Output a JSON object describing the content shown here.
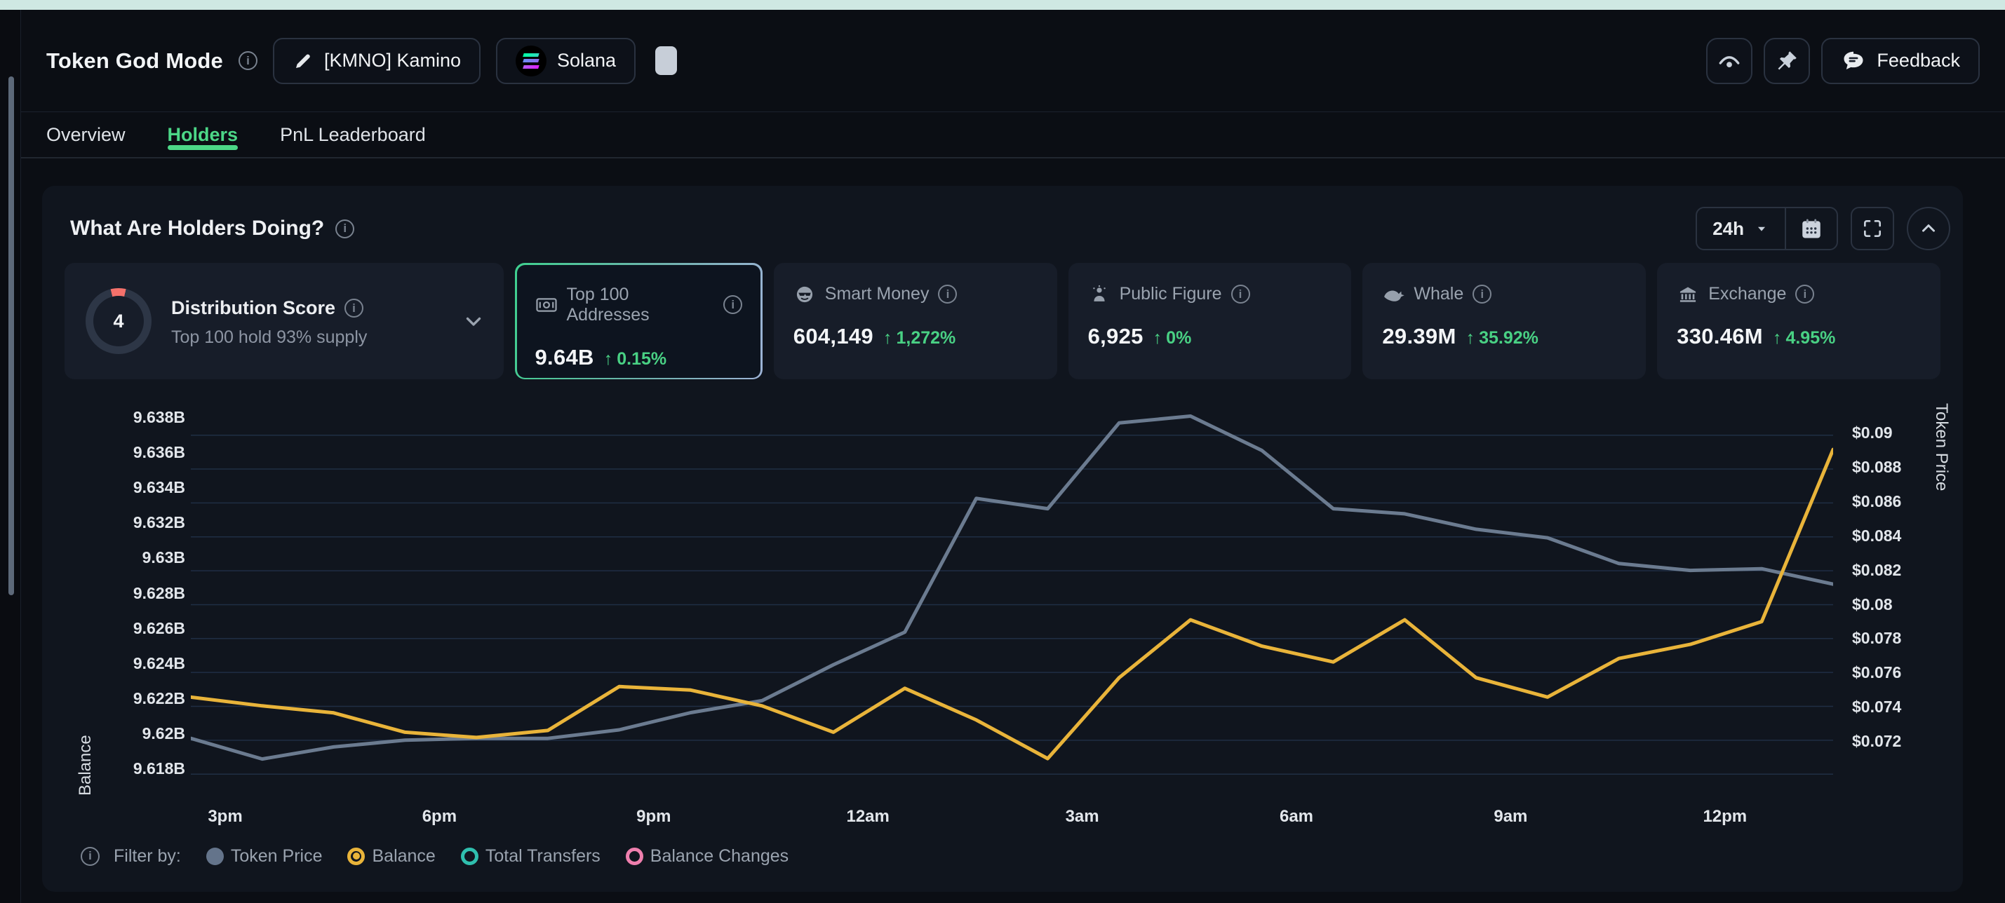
{
  "header": {
    "title": "Token God Mode",
    "token_button": {
      "label": "[KMNO] Kamino",
      "icon": "pencil-icon"
    },
    "chain_button": {
      "label": "Solana",
      "icon": "solana-logo"
    },
    "copy_icon": "copy-icon",
    "watch_icon": "eye-icon",
    "pin_icon": "pin-icon",
    "feedback_button": {
      "label": "Feedback",
      "icon": "chat-bubble-icon"
    }
  },
  "tabs": [
    {
      "label": "Overview",
      "active": false
    },
    {
      "label": "Holders",
      "active": true
    },
    {
      "label": "PnL Leaderboard",
      "active": false
    }
  ],
  "panel": {
    "title": "What Are Holders Doing?",
    "timeframe": "24h",
    "controls": [
      "timeframe-dropdown",
      "calendar-icon",
      "fullscreen-icon",
      "collapse-chevron-icon"
    ],
    "tiles": [
      {
        "name": "Distribution Score",
        "score": "4",
        "subtitle": "Top 100 hold 93% supply",
        "ring_color": "#f4716b"
      },
      {
        "name": "Top 100 Addresses",
        "icon": "banknote-icon",
        "value": "9.64B",
        "delta": "0.15%",
        "selected": true
      },
      {
        "name": "Smart Money",
        "icon": "sunglasses-face-icon",
        "value": "604,149",
        "delta": "1,272%"
      },
      {
        "name": "Public Figure",
        "icon": "public-figure-icon",
        "value": "6,925",
        "delta": "0%"
      },
      {
        "name": "Whale",
        "icon": "whale-icon",
        "value": "29.39M",
        "delta": "35.92%"
      },
      {
        "name": "Exchange",
        "icon": "bank-icon",
        "value": "330.46M",
        "delta": "4.95%"
      }
    ],
    "delta_color": "#49d184",
    "accent_green": "#4cd787",
    "legend": {
      "prefix": "Filter by:",
      "items": [
        {
          "label": "Token Price",
          "marker": "filled",
          "color": "#64748b"
        },
        {
          "label": "Balance",
          "marker": "radio-selected",
          "color": "#e9b43a"
        },
        {
          "label": "Total Transfers",
          "marker": "ring",
          "color": "#2fbfae"
        },
        {
          "label": "Balance Changes",
          "marker": "ring",
          "color": "#ef7fae"
        }
      ]
    }
  },
  "chart_data": {
    "type": "line",
    "x": [
      "2:30pm",
      "3:30pm",
      "4:30pm",
      "5:30pm",
      "6:30pm",
      "7:30pm",
      "8:30pm",
      "9:30pm",
      "10:30pm",
      "11:30pm",
      "12:30am",
      "1:30am",
      "2:30am",
      "3:30am",
      "4:30am",
      "5:30am",
      "6:30am",
      "7:30am",
      "8:30am",
      "9:30am",
      "10:30am",
      "11:30am",
      "12:30pm",
      "1:30pm"
    ],
    "x_axis": {
      "labels": [
        "3pm",
        "6pm",
        "9pm",
        "12am",
        "3am",
        "6am",
        "9am",
        "12pm"
      ]
    },
    "left_axis": {
      "label": "Balance",
      "ticks": [
        "9.638B",
        "9.636B",
        "9.634B",
        "9.632B",
        "9.63B",
        "9.628B",
        "9.626B",
        "9.624B",
        "9.622B",
        "9.62B",
        "9.618B"
      ],
      "top_value": 9.638,
      "tick_step": 0.002
    },
    "right_axis": {
      "label": "Token Price",
      "ticks": [
        "$0.09",
        "$0.088",
        "$0.086",
        "$0.084",
        "$0.082",
        "$0.08",
        "$0.078",
        "$0.076",
        "$0.074",
        "$0.072"
      ],
      "top_value": 0.09,
      "tick_step": 0.002
    },
    "grid": true,
    "legend_position": "bottom",
    "series": [
      {
        "name": "Token Price",
        "axis": "right",
        "color": "#6b7b90",
        "values": [
          0.0722,
          0.071,
          0.0717,
          0.0721,
          0.0722,
          0.0722,
          0.0727,
          0.0737,
          0.0744,
          0.0765,
          0.0784,
          0.0862,
          0.0856,
          0.0906,
          0.091,
          0.089,
          0.0856,
          0.0853,
          0.0844,
          0.0839,
          0.0824,
          0.082,
          0.0821,
          0.0812
        ]
      },
      {
        "name": "Balance",
        "axis": "left",
        "color": "#e9b43a",
        "values": [
          9.6221,
          9.6216,
          9.6212,
          9.6201,
          9.6198,
          9.6202,
          9.6227,
          9.6225,
          9.6216,
          9.6201,
          9.6226,
          9.6208,
          9.6186,
          9.6232,
          9.6265,
          9.625,
          9.6241,
          9.6265,
          9.6232,
          9.6221,
          9.6243,
          9.6251,
          9.6264,
          9.6362
        ]
      }
    ]
  }
}
